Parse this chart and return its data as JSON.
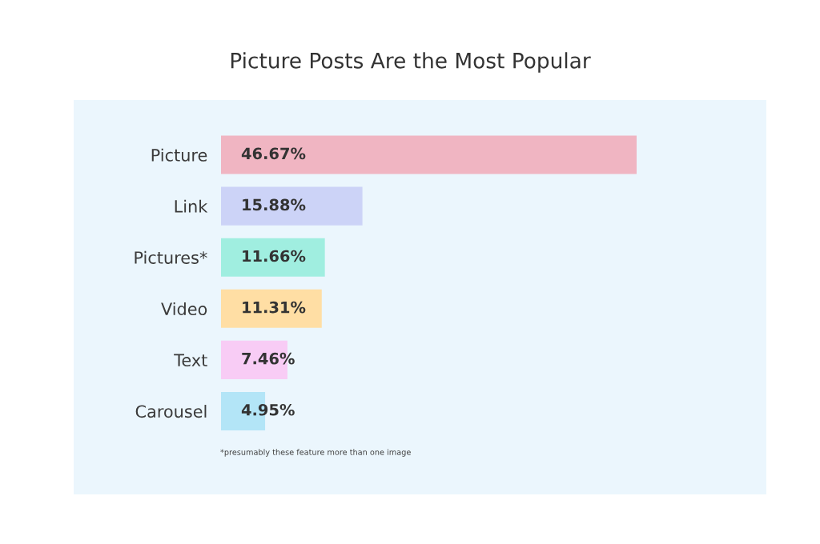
{
  "chart_data": {
    "type": "bar",
    "orientation": "horizontal",
    "title": "Picture Posts Are the Most Popular",
    "categories": [
      "Picture",
      "Link",
      "Pictures*",
      "Video",
      "Text",
      "Carousel"
    ],
    "values": [
      46.67,
      15.88,
      11.66,
      11.31,
      7.46,
      4.95
    ],
    "colors": [
      "#f0b5c2",
      "#ccd3f7",
      "#a0eee0",
      "#ffdea4",
      "#f8ccf5",
      "#b3e5f7"
    ],
    "value_labels": [
      "46.67%",
      "15.88%",
      "11.66%",
      "11.31%",
      "7.46%",
      "4.95%"
    ],
    "tick_labels": "y",
    "grid": false,
    "legend": false,
    "annotations": [
      "*presumably these feature more than one image"
    ]
  }
}
